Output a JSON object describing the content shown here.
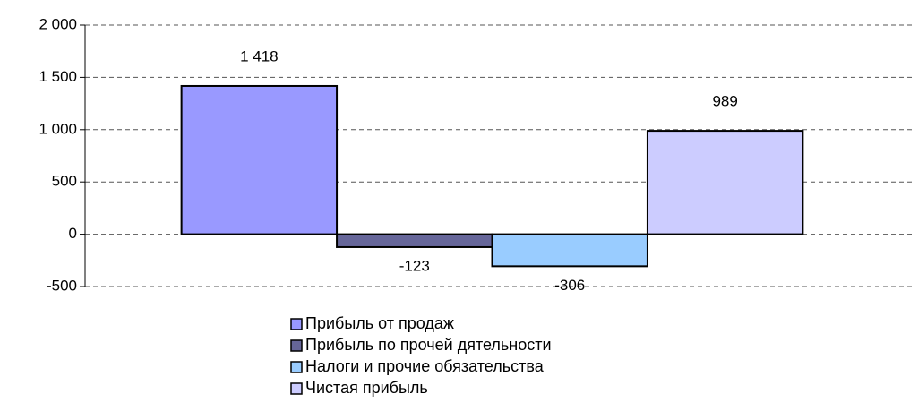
{
  "chart_data": {
    "type": "bar",
    "categories": [
      null
    ],
    "series": [
      {
        "name": "Прибыль от продаж",
        "color": "#9999ff",
        "values": [
          1418
        ],
        "value_labels": [
          "1 418"
        ]
      },
      {
        "name": "Прибыль по прочей дятельности",
        "color": "#666699",
        "values": [
          -123
        ]
      },
      {
        "name": "Налоги и прочие обязательства",
        "color": "#99ccff",
        "values": [
          -306
        ]
      },
      {
        "name": "Чистая прибыль",
        "color": "#ccccff",
        "values": [
          989
        ]
      }
    ],
    "ylim": [
      -500,
      2000
    ],
    "yticks": [
      -500,
      0,
      500,
      {
        "value": 1000,
        "label": "1 000"
      },
      {
        "value": 1500,
        "label": "1 500"
      },
      {
        "value": 2000,
        "label": "2 000"
      }
    ],
    "grid": true,
    "legend": "bottom"
  }
}
